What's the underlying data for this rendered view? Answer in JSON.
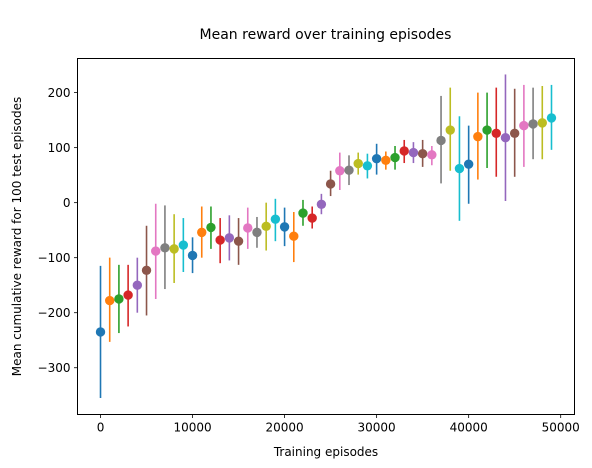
{
  "chart_data": {
    "type": "scatter",
    "title": "Mean reward over training episodes",
    "xlabel": "Training episodes",
    "ylabel": "Mean cumulative reward for 100 test episodes",
    "xlim": [
      -2500,
      51500
    ],
    "ylim": [
      -385,
      262
    ],
    "xticks": [
      0,
      10000,
      20000,
      30000,
      40000,
      50000
    ],
    "xtick_labels": [
      "0",
      "10000",
      "20000",
      "30000",
      "40000",
      "50000"
    ],
    "yticks": [
      -300,
      -200,
      -100,
      0,
      100,
      200
    ],
    "ytick_labels": [
      "−300",
      "−200",
      "−100",
      "0",
      "100",
      "200"
    ],
    "error_bars": true,
    "grid": false,
    "legend": "none",
    "palette": [
      "#1f77b4",
      "#ff7f0e",
      "#2ca02c",
      "#d62728",
      "#9467bd",
      "#8c564b",
      "#e377c2",
      "#7f7f7f",
      "#bcbd22",
      "#17becf"
    ],
    "points": [
      {
        "x": 0,
        "y": -235,
        "low": -355,
        "high": -115
      },
      {
        "x": 1000,
        "y": -178,
        "low": -253,
        "high": -100
      },
      {
        "x": 2000,
        "y": -175,
        "low": -237,
        "high": -113
      },
      {
        "x": 3000,
        "y": -168,
        "low": -225,
        "high": -113
      },
      {
        "x": 4000,
        "y": -150,
        "low": -200,
        "high": -100
      },
      {
        "x": 5000,
        "y": -123,
        "low": -205,
        "high": -42
      },
      {
        "x": 6000,
        "y": -88,
        "low": -175,
        "high": -2
      },
      {
        "x": 7000,
        "y": -82,
        "low": -157,
        "high": -5
      },
      {
        "x": 8000,
        "y": -84,
        "low": -146,
        "high": -21
      },
      {
        "x": 9000,
        "y": -77,
        "low": -126,
        "high": -28
      },
      {
        "x": 10000,
        "y": -96,
        "low": -128,
        "high": -63
      },
      {
        "x": 11000,
        "y": -54,
        "low": -100,
        "high": -7
      },
      {
        "x": 12000,
        "y": -45,
        "low": -84,
        "high": -7
      },
      {
        "x": 13000,
        "y": -68,
        "low": -110,
        "high": -28
      },
      {
        "x": 14000,
        "y": -64,
        "low": -105,
        "high": -23
      },
      {
        "x": 15000,
        "y": -70,
        "low": -113,
        "high": -28
      },
      {
        "x": 16000,
        "y": -46,
        "low": -84,
        "high": -9
      },
      {
        "x": 17000,
        "y": -54,
        "low": -82,
        "high": -26
      },
      {
        "x": 18000,
        "y": -43,
        "low": -87,
        "high": 0
      },
      {
        "x": 19000,
        "y": -30,
        "low": -70,
        "high": 7
      },
      {
        "x": 20000,
        "y": -44,
        "low": -79,
        "high": -9
      },
      {
        "x": 21000,
        "y": -61,
        "low": -108,
        "high": -17
      },
      {
        "x": 22000,
        "y": -19,
        "low": -42,
        "high": 5
      },
      {
        "x": 23000,
        "y": -28,
        "low": -47,
        "high": -7
      },
      {
        "x": 24000,
        "y": -3,
        "low": -21,
        "high": 16
      },
      {
        "x": 25000,
        "y": 34,
        "low": 12,
        "high": 58
      },
      {
        "x": 26000,
        "y": 58,
        "low": 23,
        "high": 91
      },
      {
        "x": 27000,
        "y": 59,
        "low": 32,
        "high": 86
      },
      {
        "x": 28000,
        "y": 71,
        "low": 51,
        "high": 91
      },
      {
        "x": 29000,
        "y": 67,
        "low": 44,
        "high": 89
      },
      {
        "x": 30000,
        "y": 80,
        "low": 51,
        "high": 107
      },
      {
        "x": 31000,
        "y": 77,
        "low": 60,
        "high": 93
      },
      {
        "x": 32000,
        "y": 82,
        "low": 60,
        "high": 103
      },
      {
        "x": 33000,
        "y": 94,
        "low": 72,
        "high": 114
      },
      {
        "x": 34000,
        "y": 91,
        "low": 72,
        "high": 110
      },
      {
        "x": 35000,
        "y": 89,
        "low": 65,
        "high": 114
      },
      {
        "x": 36000,
        "y": 87,
        "low": 68,
        "high": 103
      },
      {
        "x": 37000,
        "y": 113,
        "low": 35,
        "high": 194
      },
      {
        "x": 38000,
        "y": 132,
        "low": 58,
        "high": 209
      },
      {
        "x": 39000,
        "y": 62,
        "low": -33,
        "high": 157
      },
      {
        "x": 40000,
        "y": 70,
        "low": -2,
        "high": 140
      },
      {
        "x": 41000,
        "y": 120,
        "low": 42,
        "high": 200
      },
      {
        "x": 42000,
        "y": 132,
        "low": 63,
        "high": 200
      },
      {
        "x": 43000,
        "y": 126,
        "low": 47,
        "high": 209
      },
      {
        "x": 44000,
        "y": 118,
        "low": 3,
        "high": 233
      },
      {
        "x": 45000,
        "y": 126,
        "low": 47,
        "high": 207
      },
      {
        "x": 46000,
        "y": 140,
        "low": 65,
        "high": 214
      },
      {
        "x": 47000,
        "y": 143,
        "low": 79,
        "high": 209
      },
      {
        "x": 48000,
        "y": 145,
        "low": 79,
        "high": 212
      },
      {
        "x": 49000,
        "y": 154,
        "low": 96,
        "high": 214
      }
    ]
  }
}
